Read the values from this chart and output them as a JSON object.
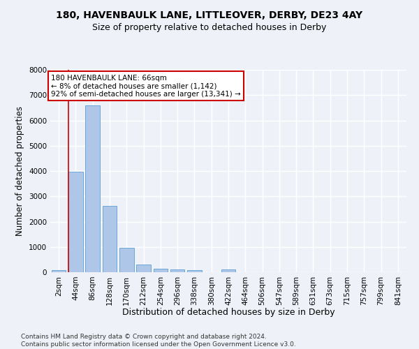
{
  "title1": "180, HAVENBAULK LANE, LITTLEOVER, DERBY, DE23 4AY",
  "title2": "Size of property relative to detached houses in Derby",
  "xlabel": "Distribution of detached houses by size in Derby",
  "ylabel": "Number of detached properties",
  "bar_color": "#aec6e8",
  "bar_edge_color": "#5a9fd4",
  "categories": [
    "2sqm",
    "44sqm",
    "86sqm",
    "128sqm",
    "170sqm",
    "212sqm",
    "254sqm",
    "296sqm",
    "338sqm",
    "380sqm",
    "422sqm",
    "464sqm",
    "506sqm",
    "547sqm",
    "589sqm",
    "631sqm",
    "673sqm",
    "715sqm",
    "757sqm",
    "799sqm",
    "841sqm"
  ],
  "values": [
    70,
    3980,
    6580,
    2620,
    960,
    310,
    130,
    100,
    70,
    0,
    100,
    0,
    0,
    0,
    0,
    0,
    0,
    0,
    0,
    0,
    0
  ],
  "ylim": [
    0,
    8000
  ],
  "yticks": [
    0,
    1000,
    2000,
    3000,
    4000,
    5000,
    6000,
    7000,
    8000
  ],
  "vline_color": "#cc0000",
  "annotation_text": "180 HAVENBAULK LANE: 66sqm\n← 8% of detached houses are smaller (1,142)\n92% of semi-detached houses are larger (13,341) →",
  "annotation_box_color": "#ffffff",
  "annotation_border_color": "#cc0000",
  "footnote": "Contains HM Land Registry data © Crown copyright and database right 2024.\nContains public sector information licensed under the Open Government Licence v3.0.",
  "bg_color": "#eef2f8",
  "grid_color": "#ffffff",
  "title1_fontsize": 10,
  "title2_fontsize": 9,
  "xlabel_fontsize": 9,
  "ylabel_fontsize": 8.5,
  "tick_fontsize": 7.5,
  "footnote_fontsize": 6.5,
  "annotation_fontsize": 7.5
}
